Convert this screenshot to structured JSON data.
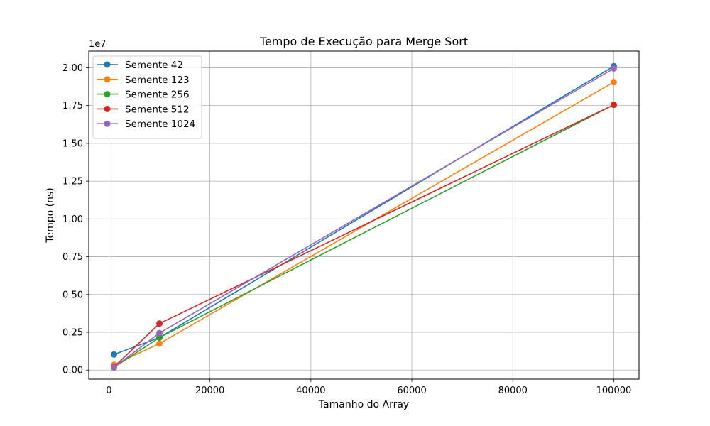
{
  "chart_data": {
    "type": "line",
    "title": "Tempo de Execução para  Merge Sort",
    "xlabel": "Tamanho do Array",
    "ylabel": "Tempo (ns)",
    "y_offset_label": "1e7",
    "x": [
      1000,
      10000,
      100000
    ],
    "xlim": [
      -4000,
      105000
    ],
    "ylim": [
      -600000,
      21100000
    ],
    "x_ticks": [
      0,
      20000,
      40000,
      60000,
      80000,
      100000
    ],
    "x_tick_labels": [
      "0",
      "20000",
      "40000",
      "60000",
      "80000",
      "100000"
    ],
    "y_ticks": [
      0,
      2500000,
      5000000,
      7500000,
      10000000,
      12500000,
      15000000,
      17500000,
      20000000
    ],
    "y_tick_labels": [
      "0.00",
      "0.25",
      "0.50",
      "0.75",
      "1.00",
      "1.25",
      "1.50",
      "1.75",
      "2.00"
    ],
    "grid": true,
    "legend_position": "top-left",
    "series": [
      {
        "name": "Semente 42",
        "color": "#1f77b4",
        "values": [
          1030000,
          2150000,
          20100000
        ]
      },
      {
        "name": "Semente 123",
        "color": "#ff7f0e",
        "values": [
          350000,
          1750000,
          19050000
        ]
      },
      {
        "name": "Semente 256",
        "color": "#2ca02c",
        "values": [
          180000,
          2150000,
          17550000
        ]
      },
      {
        "name": "Semente 512",
        "color": "#d62728",
        "values": [
          200000,
          3080000,
          17550000
        ]
      },
      {
        "name": "Semente 1024",
        "color": "#9467bd",
        "values": [
          170000,
          2450000,
          19950000
        ]
      }
    ]
  }
}
